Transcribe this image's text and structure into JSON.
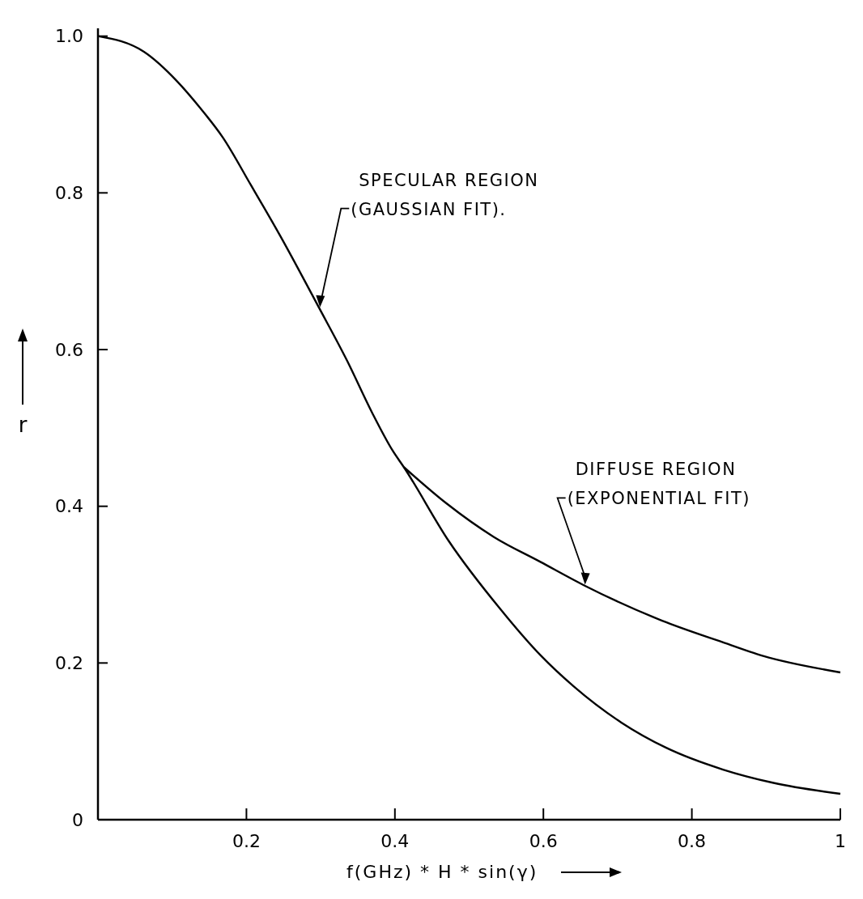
{
  "chart_data": {
    "type": "line",
    "xlabel": "f(GHz) * H * sin(γ)",
    "ylabel": "r",
    "xlim": [
      0,
      1
    ],
    "ylim": [
      0,
      1.01
    ],
    "xticks": [
      0.2,
      0.4,
      0.6,
      0.8,
      1
    ],
    "yticks": [
      0,
      0.2,
      0.4,
      0.6,
      0.8,
      {
        "value": 1,
        "label": "1.0"
      }
    ],
    "grid": false,
    "marker": "none",
    "line_style": "solid",
    "series": [
      {
        "color": "#000000",
        "x": [
          0,
          0.062,
          0.107,
          0.138,
          0.168,
          0.206,
          0.245,
          0.298,
          0.336,
          0.369,
          0.397,
          0.412,
          0.473,
          0.541,
          0.596,
          0.641,
          0.705,
          0.765,
          0.842,
          0.91,
          1.0
        ],
        "values": [
          1.0,
          0.98,
          0.942,
          0.908,
          0.871,
          0.81,
          0.746,
          0.653,
          0.585,
          0.52,
          0.471,
          0.45,
          0.355,
          0.27,
          0.21,
          0.17,
          0.124,
          0.092,
          0.064,
          0.047,
          0.033
        ]
      },
      {
        "color": "#000000",
        "x": [
          0.412,
          0.469,
          0.533,
          0.596,
          0.655,
          0.76,
          0.837,
          0.896,
          1.0
        ],
        "values": [
          0.45,
          0.404,
          0.361,
          0.329,
          0.299,
          0.254,
          0.228,
          0.209,
          0.188
        ]
      }
    ],
    "annotations": [
      {
        "text": "SPECULAR REGION\n(GAUSSIAN FIT).",
        "x": 0.298,
        "y": 0.653
      },
      {
        "text": "DIFFUSE REGION\n(EXPONENTIAL FIT)",
        "x": 0.655,
        "y": 0.299
      }
    ]
  }
}
